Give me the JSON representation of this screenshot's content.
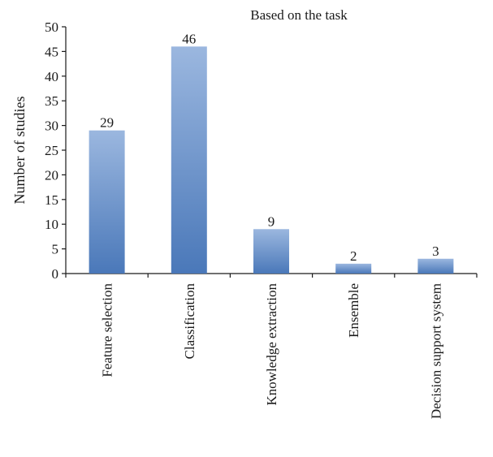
{
  "chart_data": {
    "type": "bar",
    "title": "Based on the task",
    "xlabel": "",
    "ylabel": "Number of studies",
    "categories": [
      "Feature selection",
      "Classification",
      "Knowledge extraction",
      "Ensemble",
      "Decision support system"
    ],
    "values": [
      29,
      46,
      9,
      2,
      3
    ],
    "ylim": [
      0,
      50
    ],
    "yticks": [
      0,
      5,
      10,
      15,
      20,
      25,
      30,
      35,
      40,
      45,
      50
    ],
    "data_labels": [
      "29",
      "46",
      "9",
      "2",
      "3"
    ],
    "grid": false,
    "legend": "none",
    "colors": {
      "bar_top": "#9bb7df",
      "bar_bottom": "#4a78b9",
      "axis": "#1a1a1a"
    }
  }
}
